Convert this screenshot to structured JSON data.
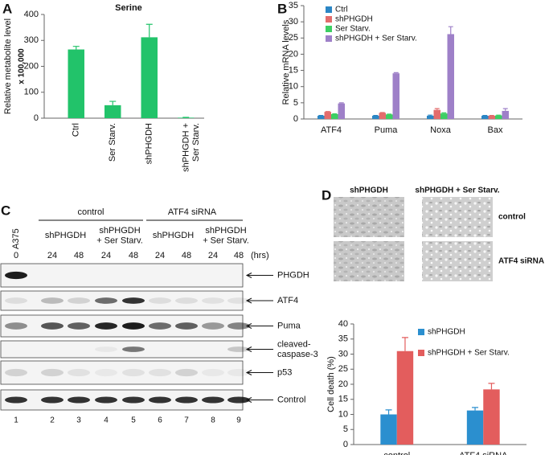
{
  "panels": {
    "a": "A",
    "b": "B",
    "c": "C",
    "d": "D"
  },
  "chart_data": [
    {
      "type": "bar",
      "title": "Serine",
      "y_label": "Relative metabolite level",
      "y_note": "x 100,000",
      "categories": [
        "Ctrl",
        "Ser Starv.",
        "shPHGDH",
        "shPHGDH + Ser Starv."
      ],
      "values": [
        265,
        50,
        312,
        2
      ],
      "errors": [
        12,
        15,
        50,
        1
      ],
      "color": "#22c36a",
      "ylim": [
        0,
        400
      ],
      "yticks": [
        0,
        100,
        200,
        300,
        400
      ]
    },
    {
      "type": "bar",
      "y_label": "Relative mRNA levels",
      "categories": [
        "ATF4",
        "Puma",
        "Noxa",
        "Bax"
      ],
      "series": [
        {
          "name": "Ctrl",
          "color": "#2b86c5",
          "values": [
            1,
            1,
            1,
            1
          ],
          "errors": [
            0.1,
            0.1,
            0.2,
            0.1
          ]
        },
        {
          "name": "shPHGDH",
          "color": "#e36c6c",
          "values": [
            2.2,
            1.9,
            2.8,
            1
          ],
          "errors": [
            0.1,
            0.1,
            0.4,
            0.1
          ]
        },
        {
          "name": "Ser Starv.",
          "color": "#3ccf63",
          "values": [
            1.5,
            1.4,
            1.7,
            1.1
          ],
          "errors": [
            0.1,
            0.1,
            0.2,
            0.1
          ]
        },
        {
          "name": "shPHGDH + Ser Starv.",
          "color": "#9e80c8",
          "values": [
            4.8,
            14.1,
            26.2,
            2.5
          ],
          "errors": [
            0.2,
            0.2,
            2.3,
            0.7
          ]
        }
      ],
      "ylim": [
        0,
        35
      ],
      "yticks": [
        0,
        5,
        10,
        15,
        20,
        25,
        30,
        35
      ],
      "legend": "top-left"
    },
    {
      "type": "bar",
      "y_label": "Cell death (%)",
      "categories": [
        "control",
        "ATF4 siRNA"
      ],
      "series": [
        {
          "name": "shPHGDH",
          "color": "#2b8fcf",
          "values": [
            10,
            11.3
          ],
          "errors": [
            1.5,
            1
          ]
        },
        {
          "name": "shPHGDH + Ser Starv.",
          "color": "#e35d5d",
          "values": [
            31,
            18.3
          ],
          "errors": [
            4.5,
            2
          ]
        }
      ],
      "ylim": [
        0,
        40
      ],
      "yticks": [
        0,
        5,
        10,
        15,
        20,
        25,
        30,
        35,
        40
      ],
      "legend": "top-right"
    }
  ],
  "blot": {
    "cell_line": "A375",
    "groups": [
      {
        "label": "control",
        "conditions": [
          "shPHGDH",
          "shPHGDH + Ser Starv."
        ]
      },
      {
        "label": "ATF4 siRNA",
        "conditions": [
          "shPHGDH",
          "shPHGDH + Ser Starv."
        ]
      }
    ],
    "times": [
      0,
      24,
      48,
      24,
      48,
      24,
      48,
      24,
      48
    ],
    "time_unit": "(hrs)",
    "bands": [
      "PHGDH",
      "ATF4",
      "Puma",
      "cleaved-caspase-3",
      "p53",
      "Control"
    ],
    "lanes": [
      1,
      2,
      3,
      4,
      5,
      6,
      7,
      8,
      9
    ]
  },
  "images": {
    "columns": [
      "shPHGDH",
      "shPHGDH + Ser Starv."
    ],
    "rows": [
      "control",
      "ATF4 siRNA"
    ]
  }
}
